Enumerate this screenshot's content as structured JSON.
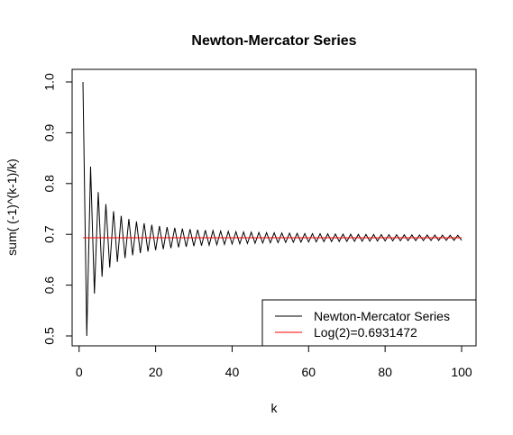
{
  "chart_data": {
    "type": "line",
    "title": "Newton-Mercator Series",
    "xlabel": "k",
    "ylabel": "sum( (-1)^(k-1)/k)",
    "xlim": [
      1,
      100
    ],
    "ylim": [
      0.5,
      1.0
    ],
    "x_ticks": [
      0,
      20,
      40,
      60,
      80,
      100
    ],
    "x_tick_labels": [
      "0",
      "20",
      "40",
      "60",
      "80",
      "100"
    ],
    "y_ticks": [
      0.5,
      0.6,
      0.7,
      0.8,
      0.9,
      1.0
    ],
    "y_tick_labels": [
      "0.5",
      "0.6",
      "0.7",
      "0.8",
      "0.9",
      "1.0"
    ],
    "grid": false,
    "legend_position": "bottom-right",
    "series": [
      {
        "name": "Newton-Mercator Series",
        "color": "#000000",
        "x": [
          1,
          2,
          3,
          4,
          5,
          6,
          7,
          8,
          9,
          10,
          11,
          12,
          13,
          14,
          15,
          16,
          17,
          18,
          19,
          20,
          21,
          22,
          23,
          24,
          25,
          26,
          27,
          28,
          29,
          30,
          31,
          32,
          33,
          34,
          35,
          36,
          37,
          38,
          39,
          40,
          41,
          42,
          43,
          44,
          45,
          46,
          47,
          48,
          49,
          50,
          51,
          52,
          53,
          54,
          55,
          56,
          57,
          58,
          59,
          60,
          61,
          62,
          63,
          64,
          65,
          66,
          67,
          68,
          69,
          70,
          71,
          72,
          73,
          74,
          75,
          76,
          77,
          78,
          79,
          80,
          81,
          82,
          83,
          84,
          85,
          86,
          87,
          88,
          89,
          90,
          91,
          92,
          93,
          94,
          95,
          96,
          97,
          98,
          99,
          100
        ],
        "values": [
          1.0,
          0.5,
          0.8333,
          0.5833,
          0.7833,
          0.6167,
          0.7595,
          0.6345,
          0.7456,
          0.6456,
          0.7365,
          0.6532,
          0.7301,
          0.6587,
          0.7254,
          0.6629,
          0.7217,
          0.6661,
          0.7188,
          0.6688,
          0.7164,
          0.6709,
          0.7144,
          0.6728,
          0.7128,
          0.6743,
          0.7113,
          0.6756,
          0.7101,
          0.6768,
          0.7091,
          0.6778,
          0.7081,
          0.6787,
          0.7073,
          0.6795,
          0.7065,
          0.6802,
          0.7059,
          0.6809,
          0.7052,
          0.6814,
          0.7047,
          0.682,
          0.7042,
          0.6825,
          0.7037,
          0.6829,
          0.7033,
          0.6833,
          0.7029,
          0.6837,
          0.7026,
          0.684,
          0.7022,
          0.6844,
          0.7019,
          0.6847,
          0.7016,
          0.685,
          0.7014,
          0.6852,
          0.7011,
          0.6855,
          0.7009,
          0.6857,
          0.7006,
          0.6859,
          0.7004,
          0.6861,
          0.7002,
          0.6863,
          0.7,
          0.6865,
          0.6998,
          0.6867,
          0.6997,
          0.6869,
          0.6995,
          0.687,
          0.6994,
          0.6872,
          0.6992,
          0.6873,
          0.6991,
          0.6875,
          0.6989,
          0.6876,
          0.6988,
          0.6877,
          0.6987,
          0.6879,
          0.6986,
          0.688,
          0.6984,
          0.6881,
          0.6983,
          0.6882,
          0.6982,
          0.6882
        ]
      },
      {
        "name": "Log(2)=0.6931472",
        "color": "#ff0000",
        "x": [
          1,
          100
        ],
        "values": [
          0.6931472,
          0.6931472
        ]
      }
    ]
  }
}
